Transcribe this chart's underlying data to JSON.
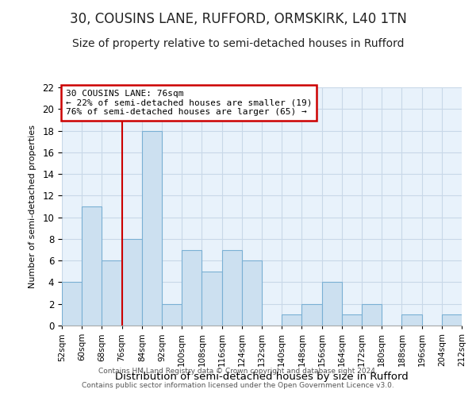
{
  "title": "30, COUSINS LANE, RUFFORD, ORMSKIRK, L40 1TN",
  "subtitle": "Size of property relative to semi-detached houses in Rufford",
  "xlabel": "Distribution of semi-detached houses by size in Rufford",
  "ylabel": "Number of semi-detached properties",
  "footnote1": "Contains HM Land Registry data © Crown copyright and database right 2024.",
  "footnote2": "Contains public sector information licensed under the Open Government Licence v3.0.",
  "bin_edges": [
    52,
    60,
    68,
    76,
    84,
    92,
    100,
    108,
    116,
    124,
    132,
    140,
    148,
    156,
    164,
    172,
    180,
    188,
    196,
    204,
    212
  ],
  "bin_counts": [
    4,
    11,
    6,
    8,
    18,
    2,
    7,
    5,
    7,
    6,
    0,
    1,
    2,
    4,
    1,
    2,
    0,
    1,
    0,
    1
  ],
  "bar_facecolor": "#cce0f0",
  "bar_edgecolor": "#7ab0d4",
  "property_line_x": 76,
  "property_line_color": "#cc0000",
  "annotation_line1": "30 COUSINS LANE: 76sqm",
  "annotation_line2": "← 22% of semi-detached houses are smaller (19)",
  "annotation_line3": "76% of semi-detached houses are larger (65) →",
  "annotation_box_edgecolor": "#cc0000",
  "annotation_box_facecolor": "#ffffff",
  "ylim": [
    0,
    22
  ],
  "yticks": [
    0,
    2,
    4,
    6,
    8,
    10,
    12,
    14,
    16,
    18,
    20,
    22
  ],
  "grid_color": "#c8d8e8",
  "background_color": "#e8f2fb",
  "title_fontsize": 12,
  "subtitle_fontsize": 10,
  "xlabel_fontsize": 9.5,
  "ylabel_fontsize": 8
}
